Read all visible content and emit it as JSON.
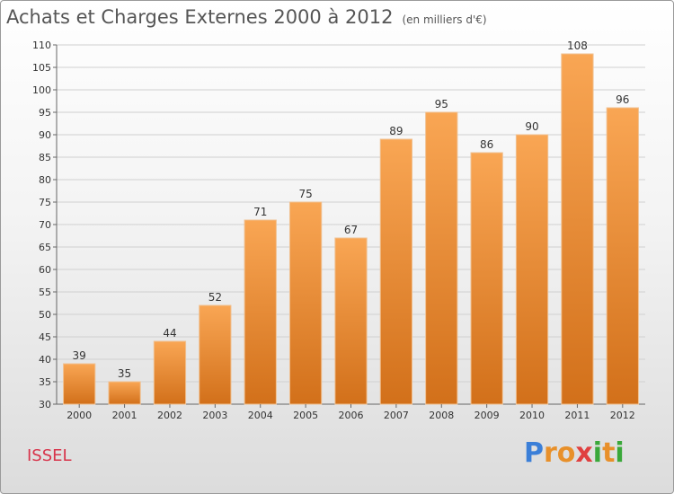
{
  "title": "Achats et Charges Externes 2000 à 2012",
  "unit": "(en milliers d'€)",
  "commune": "ISSEL",
  "logo": {
    "text": "Proxiti",
    "letters": [
      "P",
      "r",
      "o",
      "x",
      "i",
      "t",
      "i"
    ],
    "colors": [
      "#3b7fd8",
      "#e8902a",
      "#e8902a",
      "#e04040",
      "#3aa83a",
      "#e8902a",
      "#3aa83a"
    ]
  },
  "colors": {
    "bar_top": "#f9a654",
    "bar_bottom": "#d2701a",
    "bar_edge": "#f0c090",
    "grid": "#d0d0d0"
  },
  "chart_data": {
    "type": "bar",
    "title": "Achats et Charges Externes 2000 à 2012",
    "categories": [
      "2000",
      "2001",
      "2002",
      "2003",
      "2004",
      "2005",
      "2006",
      "2007",
      "2008",
      "2009",
      "2010",
      "2011",
      "2012"
    ],
    "values": [
      39,
      35,
      44,
      52,
      71,
      75,
      67,
      89,
      95,
      86,
      90,
      108,
      96
    ],
    "ylim": [
      30,
      110
    ],
    "yticks": [
      30,
      35,
      40,
      45,
      50,
      55,
      60,
      65,
      70,
      75,
      80,
      85,
      90,
      95,
      100,
      105,
      110
    ],
    "xlabel": "",
    "ylabel": "",
    "grid": "horizontal"
  }
}
